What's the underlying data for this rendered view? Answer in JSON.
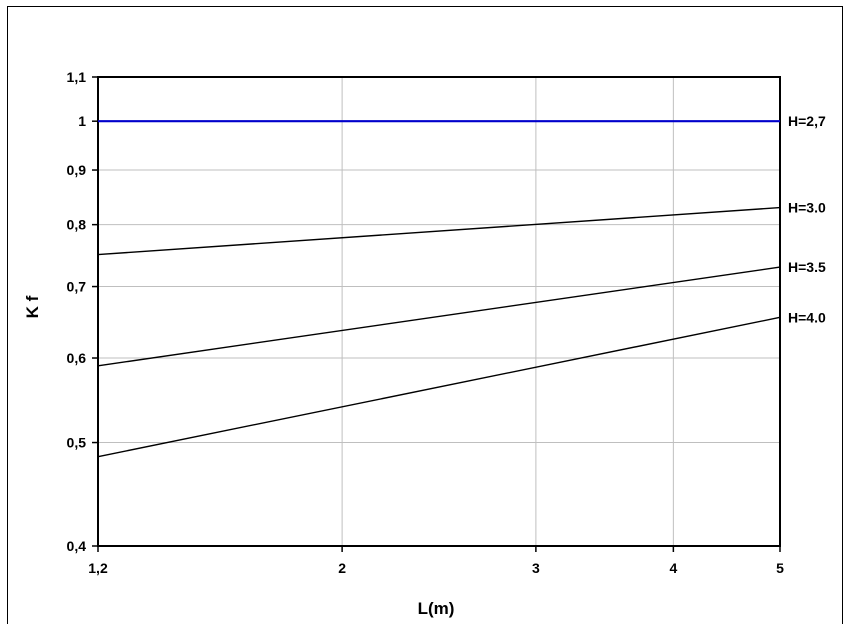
{
  "chart_data": {
    "type": "line",
    "xlabel": "L(m)",
    "ylabel": "K f",
    "x_scale": "log",
    "y_scale": "log",
    "xlim": [
      1.2,
      5
    ],
    "ylim": [
      0.4,
      1.1
    ],
    "x_ticks": [
      1.2,
      2,
      3,
      4,
      5
    ],
    "x_tick_labels": [
      "1,2",
      "2",
      "3",
      "4",
      "5"
    ],
    "y_ticks": [
      0.4,
      0.5,
      0.6,
      0.7,
      0.8,
      0.9,
      1,
      1.1
    ],
    "y_tick_labels": [
      "0,4",
      "0,5",
      "0,6",
      "0,7",
      "0,8",
      "0,9",
      "1",
      "1,1"
    ],
    "grid": true,
    "series": [
      {
        "name": "H=2,7",
        "color": "#0000cc",
        "x": [
          1.2,
          5
        ],
        "y": [
          1.0,
          1.0
        ]
      },
      {
        "name": "H=3.0",
        "color": "#000000",
        "x": [
          1.2,
          5
        ],
        "y": [
          0.75,
          0.83
        ]
      },
      {
        "name": "H=3.5",
        "color": "#000000",
        "x": [
          1.2,
          5
        ],
        "y": [
          0.59,
          0.73
        ]
      },
      {
        "name": "H=4.0",
        "color": "#000000",
        "x": [
          1.2,
          5
        ],
        "y": [
          0.485,
          0.655
        ]
      }
    ]
  }
}
